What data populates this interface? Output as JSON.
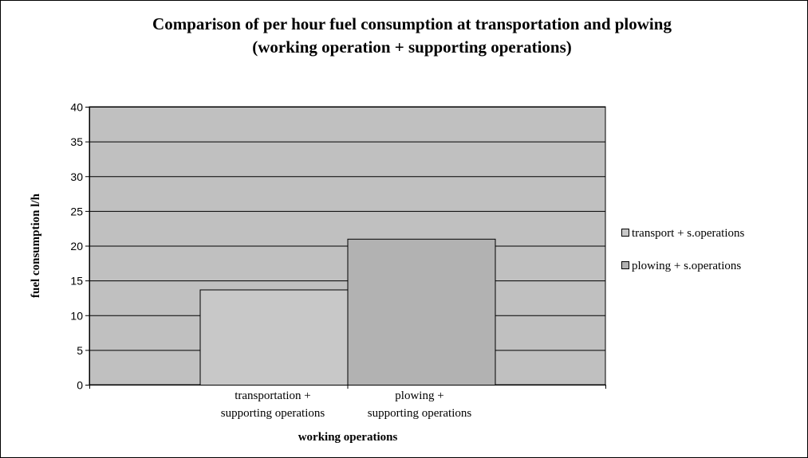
{
  "chart_data": {
    "type": "bar",
    "title": [
      "Comparison of per hour fuel consumption at transportation and plowing",
      "(working operation + supporting operations)"
    ],
    "categories": [
      [
        "transportation +",
        "supporting operations"
      ],
      [
        "plowing +",
        "supporting operations"
      ]
    ],
    "series": [
      {
        "name": "transport + s.operations",
        "color": "#c8c8c8",
        "values": [
          13.7,
          null
        ]
      },
      {
        "name": "plowing + s.operations",
        "color": "#b2b2b2",
        "values": [
          null,
          21.0
        ]
      }
    ],
    "xlabel": "working operations",
    "ylabel": "fuel consumption l/h",
    "ylim": [
      0,
      40
    ],
    "yticks": [
      0,
      5,
      10,
      15,
      20,
      25,
      30,
      35,
      40
    ],
    "plot_background": "#c0c0c0",
    "grid": true,
    "legend_position": "right"
  }
}
